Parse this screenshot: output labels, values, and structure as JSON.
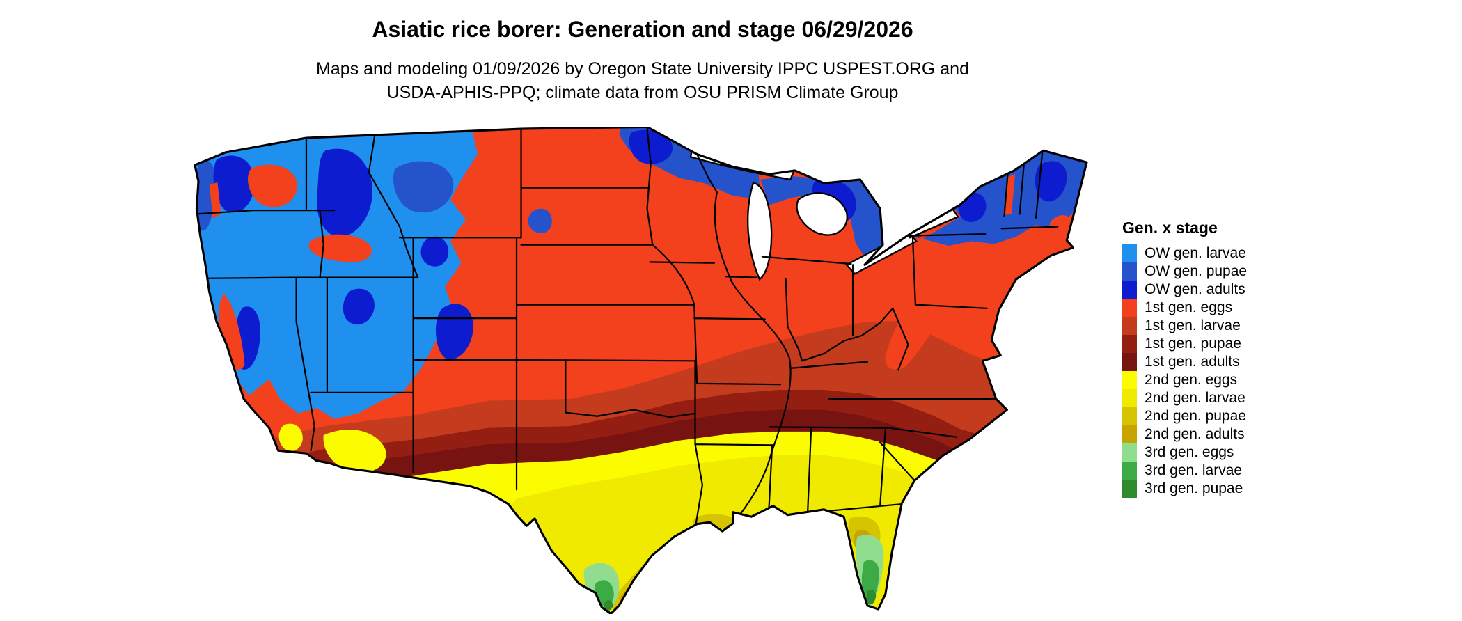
{
  "header": {
    "title": "Asiatic rice borer: Generation and stage 06/29/2026",
    "subtitle_line1": "Maps and modeling 01/09/2026 by Oregon State University IPPC USPEST.ORG and",
    "subtitle_line2": "USDA-APHIS-PPQ; climate data from OSU PRISM Climate Group"
  },
  "legend": {
    "title": "Gen. x stage",
    "items": [
      {
        "id": "ow_larvae",
        "label": "OW gen. larvae"
      },
      {
        "id": "ow_pupae",
        "label": "OW gen. pupae"
      },
      {
        "id": "ow_adults",
        "label": "OW gen. adults"
      },
      {
        "id": "g1_eggs",
        "label": "1st gen. eggs"
      },
      {
        "id": "g1_larvae",
        "label": "1st gen. larvae"
      },
      {
        "id": "g1_pupae",
        "label": "1st gen. pupae"
      },
      {
        "id": "g1_adults",
        "label": "1st gen. adults"
      },
      {
        "id": "g2_eggs",
        "label": "2nd gen. eggs"
      },
      {
        "id": "g2_larvae",
        "label": "2nd gen. larvae"
      },
      {
        "id": "g2_pupae",
        "label": "2nd gen. pupae"
      },
      {
        "id": "g2_adults",
        "label": "2nd gen. adults"
      },
      {
        "id": "g3_eggs",
        "label": "3rd gen. eggs"
      },
      {
        "id": "g3_larvae",
        "label": "3rd gen. larvae"
      },
      {
        "id": "g3_pupae",
        "label": "3rd gen. pupae"
      }
    ]
  },
  "colors": {
    "ow_larvae": "#1f90ee",
    "ow_pupae": "#2553cc",
    "ow_adults": "#0d1cce",
    "g1_eggs": "#f2411c",
    "g1_larvae": "#c43b1e",
    "g1_pupae": "#941e12",
    "g1_adults": "#771311",
    "g2_eggs": "#fcfc00",
    "g2_larvae": "#f0ea00",
    "g2_pupae": "#d6c400",
    "g2_adults": "#c8a400",
    "g3_eggs": "#90dd90",
    "g3_larvae": "#3cab46",
    "g3_pupae": "#2e8b2e",
    "border": "#000000",
    "water": "#ffffff"
  }
}
